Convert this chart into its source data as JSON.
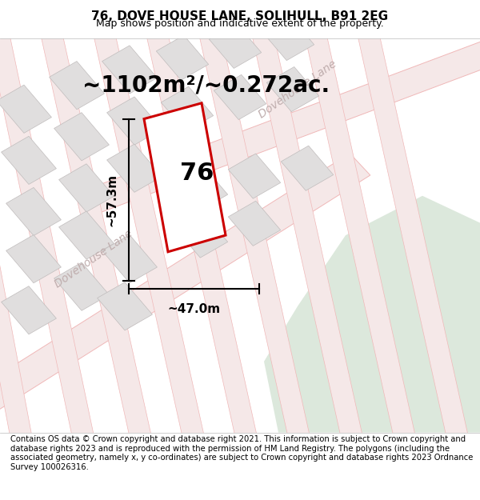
{
  "title": "76, DOVE HOUSE LANE, SOLIHULL, B91 2EG",
  "subtitle": "Map shows position and indicative extent of the property.",
  "footer": "Contains OS data © Crown copyright and database right 2021. This information is subject to Crown copyright and database rights 2023 and is reproduced with the permission of HM Land Registry. The polygons (including the associated geometry, namely x, y co-ordinates) are subject to Crown copyright and database rights 2023 Ordnance Survey 100026316.",
  "area_label": "~1102m²/~0.272ac.",
  "number_label": "76",
  "width_label": "~47.0m",
  "height_label": "~57.3m",
  "map_bg": "#f7f5f5",
  "grid_line_color": "#f0b8b8",
  "grid_line_alpha": 0.85,
  "building_color": "#e0dede",
  "building_edge_color": "#c0bcbc",
  "green_color": "#dce8dc",
  "plot_edge_color": "#cc0000",
  "plot_fill_color": "#ffffff",
  "road_label_color": "#bfadad",
  "road_label_fontsize": 10,
  "title_fontsize": 11,
  "subtitle_fontsize": 9,
  "footer_fontsize": 7.2,
  "area_fontsize": 20,
  "number_fontsize": 22,
  "dim_fontsize": 11
}
